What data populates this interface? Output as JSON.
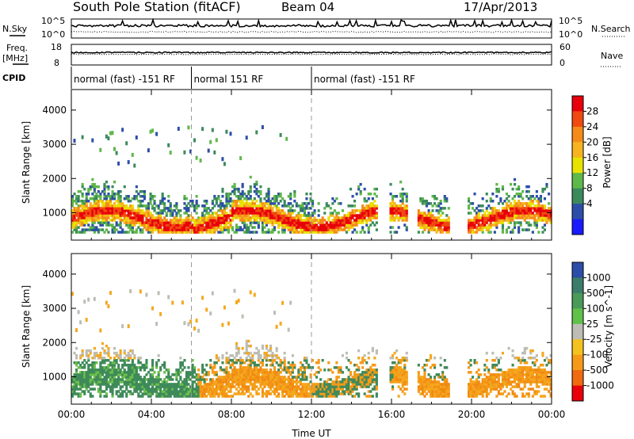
{
  "header": {
    "title": "South Pole Station (fitACF)",
    "beam": "Beam 04",
    "date": "17/Apr/2013"
  },
  "colors": {
    "velocity_neg": "#f08a14",
    "velocity_slow_neg": "#f4a81e",
    "velocity_ground": "#bdbdb5",
    "velocity_pos_slow": "#3f8a5a",
    "power_low": "#1d3fb0"
  },
  "status": {
    "nsky_label": "N.Sky",
    "nsearch_label": "N.Search",
    "freq_label": "Freq.",
    "freq_unit": "[MHz]",
    "nave_label": "Nave",
    "cpid_label": "CPID",
    "left_ticks_top": [
      "10^5",
      "10^0"
    ],
    "right_ticks_top": [
      "10^5",
      "10^0"
    ],
    "left_ticks_freq": [
      "18",
      "8"
    ],
    "right_ticks_nave": [
      "60",
      "0"
    ],
    "cpid_segments": [
      {
        "start": 0,
        "end": 6,
        "label": "normal (fast) -151 RF"
      },
      {
        "start": 6,
        "end": 12,
        "label": "normal 151 RF"
      },
      {
        "start": 12,
        "end": 24,
        "label": "normal (fast) -151 RF"
      }
    ]
  },
  "chart_data": [
    {
      "type": "heatmap",
      "name": "power",
      "xlabel": "",
      "ylabel": "Slant Range [km]",
      "xlim": [
        0,
        24
      ],
      "ylim": [
        200,
        4600
      ],
      "yticks": [
        1000,
        2000,
        3000,
        4000
      ],
      "xticks": [
        0,
        4,
        8,
        12,
        16,
        20,
        24
      ],
      "colorbar": {
        "label": "Power [dB]",
        "ticks": [
          "28",
          "24",
          "20",
          "16",
          "12",
          "8",
          "4"
        ],
        "colors": [
          "#e8000b",
          "#f04a10",
          "#f58a1a",
          "#f6b420",
          "#e8e200",
          "#5fb84a",
          "#3b8a5c",
          "#2d4ea8",
          "#1a1aff"
        ]
      }
    },
    {
      "type": "heatmap",
      "name": "velocity",
      "xlabel": "Time UT",
      "ylabel": "Slant Range [km]",
      "xlim": [
        0,
        24
      ],
      "ylim": [
        200,
        4600
      ],
      "yticks": [
        1000,
        2000,
        3000,
        4000
      ],
      "xticks": [
        0,
        4,
        8,
        12,
        16,
        20,
        24
      ],
      "xtick_labels": [
        "00:00",
        "04:00",
        "08:00",
        "12:00",
        "16:00",
        "20:00",
        "00:00"
      ],
      "colorbar": {
        "label": "Velocity [m s^-1]",
        "ticks": [
          "1000",
          "500",
          "100",
          "25",
          "-25",
          "-100",
          "-500",
          "-1000"
        ],
        "colors": [
          "#2d4ea8",
          "#3b7c6a",
          "#4a9a5a",
          "#5fc04a",
          "#bdbdb5",
          "#f4c21e",
          "#f59a18",
          "#f06a10",
          "#e8000b"
        ]
      }
    }
  ]
}
